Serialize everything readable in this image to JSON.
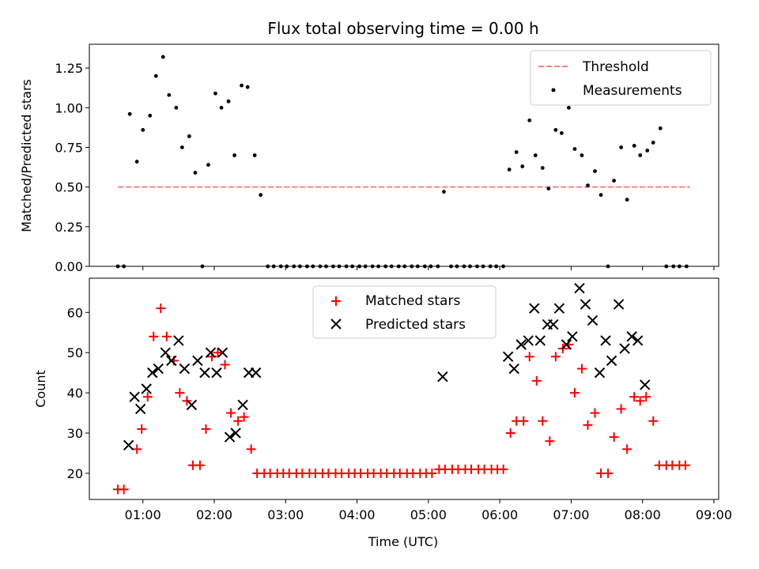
{
  "chart_data": [
    {
      "type": "scatter",
      "title": "Flux total observing time = 0.00 h",
      "xlabel": "",
      "ylabel": "Matched/Predicted stars",
      "xlim": [
        "00:15",
        "09:04"
      ],
      "ylim": [
        0,
        1.4
      ],
      "yticks": [
        0.0,
        0.25,
        0.5,
        0.75,
        1.0,
        1.25
      ],
      "ytick_labels": [
        "0.00",
        "0.25",
        "0.50",
        "0.75",
        "1.00",
        "1.25"
      ],
      "legend": {
        "position": "upper-right",
        "entries": [
          "Threshold",
          "Measurements"
        ]
      },
      "series": [
        {
          "name": "Threshold",
          "kind": "dashed-line",
          "color": "#ff8080",
          "x": [
            "00:39",
            "08:40"
          ],
          "y": [
            0.5,
            0.5
          ]
        },
        {
          "name": "Measurements",
          "kind": "dots",
          "color": "#000000",
          "x": [
            "00:39",
            "00:44",
            "00:49",
            "00:55",
            "01:00",
            "01:06",
            "01:11",
            "01:17",
            "01:22",
            "01:28",
            "01:33",
            "01:39",
            "01:44",
            "01:50",
            "01:55",
            "02:01",
            "02:06",
            "02:12",
            "02:17",
            "02:23",
            "02:28",
            "02:34",
            "02:39",
            "02:45",
            "02:50",
            "02:56",
            "03:01",
            "03:07",
            "03:12",
            "03:18",
            "03:23",
            "03:29",
            "03:34",
            "03:40",
            "03:45",
            "03:51",
            "03:56",
            "04:02",
            "04:07",
            "04:13",
            "04:18",
            "04:24",
            "04:29",
            "04:35",
            "04:40",
            "04:46",
            "04:51",
            "04:57",
            "05:02",
            "05:08",
            "05:13",
            "05:19",
            "05:24",
            "05:30",
            "05:35",
            "05:41",
            "05:46",
            "05:52",
            "05:57",
            "06:03",
            "06:08",
            "06:14",
            "06:19",
            "06:25",
            "06:30",
            "06:36",
            "06:41",
            "06:47",
            "06:52",
            "06:58",
            "07:03",
            "07:09",
            "07:14",
            "07:20",
            "07:25",
            "07:31",
            "07:36",
            "07:42",
            "07:47",
            "07:53",
            "07:58",
            "08:04",
            "08:09",
            "08:15",
            "08:20",
            "08:26",
            "08:31",
            "08:37"
          ],
          "y": [
            0,
            0,
            0.96,
            0.66,
            0.86,
            0.95,
            1.2,
            1.32,
            1.08,
            1.0,
            0.75,
            0.82,
            0.59,
            0,
            0.64,
            1.09,
            1.0,
            1.04,
            0.7,
            1.14,
            1.13,
            0.7,
            0.45,
            0,
            0,
            0,
            0,
            0,
            0,
            0,
            0,
            0,
            0,
            0,
            0,
            0,
            0,
            0,
            0,
            0,
            0,
            0,
            0,
            0,
            0,
            0,
            0,
            0,
            0,
            0,
            0.47,
            0,
            0,
            0,
            0,
            0,
            0,
            0,
            0,
            0,
            0.61,
            0.72,
            0.63,
            0.92,
            0.7,
            0.62,
            0.49,
            0.86,
            0.84,
            1.0,
            0.74,
            0.7,
            0.51,
            0.6,
            0.45,
            0,
            0.54,
            0.75,
            0.42,
            0.76,
            0.7,
            0.73,
            0.78,
            0.87,
            0,
            0,
            0,
            0
          ]
        }
      ]
    },
    {
      "type": "scatter",
      "title": "",
      "xlabel": "Time (UTC)",
      "ylabel": "Count",
      "xlim": [
        "00:15",
        "09:04"
      ],
      "ylim": [
        13.5,
        68.5
      ],
      "yticks": [
        20,
        30,
        40,
        50,
        60
      ],
      "ytick_labels": [
        "20",
        "30",
        "40",
        "50",
        "60"
      ],
      "xticks": [
        "01:00",
        "02:00",
        "03:00",
        "04:00",
        "05:00",
        "06:00",
        "07:00",
        "08:00",
        "09:00"
      ],
      "legend": {
        "position": "upper-center",
        "entries": [
          "Matched stars",
          "Predicted stars"
        ]
      },
      "series": [
        {
          "name": "Matched stars",
          "marker": "plus",
          "color": "#ff0000",
          "x": [
            "00:39",
            "00:44",
            "00:55",
            "00:59",
            "01:04",
            "01:09",
            "01:15",
            "01:20",
            "01:26",
            "01:31",
            "01:37",
            "01:42",
            "01:48",
            "01:53",
            "01:58",
            "02:03",
            "02:09",
            "02:14",
            "02:20",
            "02:25",
            "02:31",
            "02:36",
            "02:42",
            "02:47",
            "02:53",
            "02:58",
            "03:03",
            "03:09",
            "03:14",
            "03:20",
            "03:25",
            "03:31",
            "03:36",
            "03:42",
            "03:47",
            "03:53",
            "03:58",
            "04:03",
            "04:09",
            "04:14",
            "04:20",
            "04:25",
            "04:31",
            "04:36",
            "04:42",
            "04:47",
            "04:53",
            "04:58",
            "05:03",
            "05:09",
            "05:14",
            "05:20",
            "05:25",
            "05:31",
            "05:36",
            "05:42",
            "05:47",
            "05:53",
            "05:58",
            "06:03",
            "06:09",
            "06:14",
            "06:20",
            "06:25",
            "06:31",
            "06:36",
            "06:42",
            "06:47",
            "06:53",
            "06:58",
            "07:03",
            "07:09",
            "07:14",
            "07:20",
            "07:25",
            "07:31",
            "07:36",
            "07:42",
            "07:47",
            "07:53",
            "07:58",
            "08:03",
            "08:09",
            "08:14",
            "08:20",
            "08:25",
            "08:31",
            "08:36"
          ],
          "y": [
            16,
            16,
            26,
            31,
            39,
            54,
            61,
            54,
            48,
            40,
            38,
            22,
            22,
            31,
            49,
            50,
            47,
            35,
            33,
            34,
            26,
            20,
            20,
            20,
            20,
            20,
            20,
            20,
            20,
            20,
            20,
            20,
            20,
            20,
            20,
            20,
            20,
            20,
            20,
            20,
            20,
            20,
            20,
            20,
            20,
            20,
            20,
            20,
            20,
            21,
            21,
            21,
            21,
            21,
            21,
            21,
            21,
            21,
            21,
            21,
            30,
            33,
            33,
            49,
            43,
            33,
            28,
            49,
            51,
            52,
            40,
            46,
            32,
            35,
            20,
            20,
            29,
            36,
            26,
            39,
            38,
            39,
            33,
            22,
            22,
            22,
            22,
            22
          ]
        },
        {
          "name": "Predicted stars",
          "marker": "x",
          "color": "#000000",
          "x": [
            "00:48",
            "00:53",
            "00:58",
            "01:03",
            "01:08",
            "01:13",
            "01:19",
            "01:24",
            "01:30",
            "01:35",
            "01:41",
            "01:46",
            "01:52",
            "01:57",
            "02:02",
            "02:07",
            "02:13",
            "02:18",
            "02:24",
            "02:29",
            "02:35",
            "05:12",
            "06:07",
            "06:12",
            "06:18",
            "06:24",
            "06:29",
            "06:34",
            "06:40",
            "06:45",
            "06:50",
            "06:56",
            "07:01",
            "07:07",
            "07:12",
            "07:18",
            "07:24",
            "07:29",
            "07:34",
            "07:40",
            "07:45",
            "07:51",
            "07:56",
            "08:02"
          ],
          "y": [
            27,
            39,
            36,
            41,
            45,
            46,
            50,
            48,
            53,
            46,
            37,
            48,
            45,
            50,
            45,
            50,
            29,
            30,
            37,
            45,
            45,
            44,
            49,
            46,
            52,
            53,
            61,
            53,
            57,
            57,
            61,
            52,
            54,
            66,
            62,
            58,
            45,
            53,
            48,
            62,
            51,
            54,
            53,
            42
          ]
        }
      ]
    }
  ]
}
